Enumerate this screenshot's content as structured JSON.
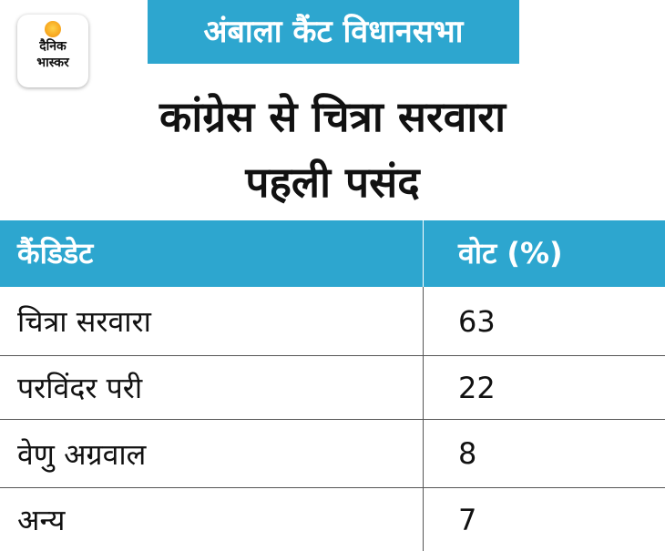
{
  "logo": {
    "line1": "दैनिक",
    "line2": "भास्कर"
  },
  "banner": "अंबाला कैंट विधानसभा",
  "title": {
    "line1": "कांग्रेस से चित्रा सरवारा",
    "line2": "पहली पसंद"
  },
  "colors": {
    "accent": "#2da6cf",
    "logo_sun": "#f6a21a"
  },
  "chart_data": {
    "type": "table",
    "columns": [
      "कैंडिडेट",
      "वोट (%)"
    ],
    "rows": [
      {
        "candidate": "चित्रा सरवारा",
        "vote": "63"
      },
      {
        "candidate": "परविंदर परी",
        "vote": "22"
      },
      {
        "candidate": "वेणु अग्रवाल",
        "vote": "8"
      },
      {
        "candidate": "अन्य",
        "vote": "7"
      }
    ]
  }
}
